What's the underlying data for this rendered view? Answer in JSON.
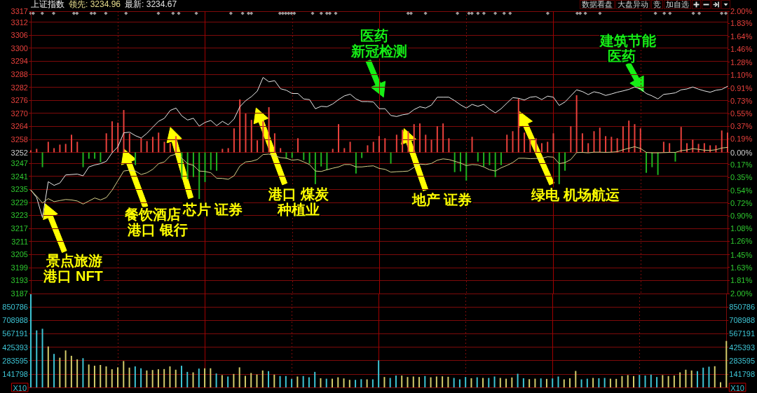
{
  "chart_data": [
    {
      "type": "line",
      "title": "上证指数",
      "annotations": [
        "领先: 3234.96",
        "最新: 3234.67",
        "数据看盘",
        "大盘异动",
        "竞",
        "加自选",
        "景点旅游",
        "港口 NFT",
        "餐饮酒店",
        "港口 银行",
        "芯片 证券",
        "港口 煤炭",
        "种植业",
        "医药",
        "新冠检测",
        "地产 证券",
        "绿电 机场航运",
        "建筑节能",
        "医药"
      ],
      "categories": [
        null,
        null,
        null,
        null,
        null,
        null,
        null,
        null,
        null,
        null,
        null,
        null,
        null,
        null,
        null,
        null,
        null,
        null,
        null,
        null,
        null,
        null,
        null,
        null,
        null,
        null,
        null,
        null,
        null,
        null,
        null,
        null,
        null,
        null,
        null,
        null,
        null,
        null,
        null,
        null,
        null,
        null,
        null,
        null,
        null,
        null,
        null,
        null,
        null,
        null,
        null,
        null,
        null,
        null,
        null,
        null,
        null,
        null,
        null,
        null,
        null,
        null,
        null,
        null,
        null,
        null,
        null,
        null,
        null,
        null,
        null,
        null,
        null,
        null,
        null,
        null,
        null,
        null,
        null,
        null,
        null,
        null,
        null,
        null,
        null,
        null,
        null,
        null,
        null,
        null,
        null,
        null,
        null,
        null,
        null,
        null,
        null,
        null,
        null,
        null,
        null,
        null,
        null,
        null,
        null,
        null,
        null,
        null,
        null,
        null,
        null,
        null,
        null,
        null,
        null,
        null,
        null,
        null,
        null,
        null,
        null
      ],
      "ylim": [
        3187,
        3317
      ],
      "yticks": [
        3187,
        3193,
        3199,
        3205,
        3211,
        3217,
        3223,
        3229,
        3235,
        3241,
        3247,
        3252,
        3258,
        3264,
        3270,
        3276,
        3282,
        3288,
        3294,
        3300,
        3306,
        3312,
        3317
      ],
      "y2lim": [
        -2,
        2
      ],
      "y2ticks": [
        {
          "value": -2,
          "label": "2.00%"
        },
        {
          "value": -1.81,
          "label": "1.81%"
        },
        {
          "value": -1.63,
          "label": "1.63%"
        },
        {
          "value": -1.45,
          "label": "1.45%"
        },
        {
          "value": -1.26,
          "label": "1.26%"
        },
        {
          "value": -1.08,
          "label": "1.08%"
        },
        {
          "value": -0.9,
          "label": "0.90%"
        },
        {
          "value": -0.72,
          "label": "0.72%"
        },
        {
          "value": -0.54,
          "label": "0.54%"
        },
        {
          "value": -0.35,
          "label": "0.35%"
        },
        {
          "value": -0.17,
          "label": "0.17%"
        },
        {
          "value": 0,
          "label": "0.00%"
        },
        {
          "value": 0.19,
          "label": "0.19%"
        },
        {
          "value": 0.37,
          "label": "0.37%"
        },
        {
          "value": 0.55,
          "label": "0.55%"
        },
        {
          "value": 0.73,
          "label": "0.73%"
        },
        {
          "value": 0.91,
          "label": "0.91%"
        },
        {
          "value": 1.1,
          "label": "1.10%"
        },
        {
          "value": 1.28,
          "label": "1.28%"
        },
        {
          "value": 1.46,
          "label": "1.46%"
        },
        {
          "value": 1.64,
          "label": "1.64%"
        },
        {
          "value": 1.83,
          "label": "1.83%"
        },
        {
          "value": 2,
          "label": "2.00%"
        }
      ],
      "series": [
        {
          "color": "#e8e8e8",
          "values": [
            3234.6,
            3231.2,
            3222,
            3238.5,
            3236.8,
            3237.9,
            3241.6,
            3241.8,
            3242,
            3241.2,
            3245.3,
            3246.2,
            3246.8,
            3247.9,
            3251.8,
            3254.6,
            3261,
            3261.3,
            3259.7,
            3258.6,
            3260.8,
            3263.6,
            3266.3,
            3267.7,
            3271.3,
            3272.4,
            3268.8,
            3266.9,
            3267.7,
            3264.1,
            3265.8,
            3266.7,
            3264.3,
            3266.3,
            3264.7,
            3267.4,
            3273,
            3275.8,
            3277.7,
            3280.2,
            3286.5,
            3284.5,
            3285,
            3281.3,
            3280.6,
            3279.1,
            3279.1,
            3276.6,
            3276.3,
            3272.1,
            3273.2,
            3273,
            3274.3,
            3276.3,
            3278,
            3278.8,
            3276.6,
            3275.4,
            3275.4,
            3275.2,
            3272.1,
            3272.1,
            3269,
            3268.5,
            3269.3,
            3269.7,
            3271.7,
            3273,
            3272.4,
            3273.8,
            3277.4,
            3277.4,
            3277.4,
            3275.8,
            3273.9,
            3272.4,
            3274.1,
            3273.2,
            3274.1,
            3271.9,
            3270.2,
            3272.1,
            3274.7,
            3277.2,
            3276.9,
            3276.1,
            3277.4,
            3277.7,
            3276.3,
            3277.9,
            3277.4,
            3273.6,
            3275.2,
            3278,
            3280.8,
            3280,
            3278.6,
            3279.9,
            3279.3,
            3278.2,
            3278.9,
            3279.7,
            3280.3,
            3281,
            3282.1,
            3281.3,
            3279.1,
            3278,
            3276.6,
            3278.7,
            3279,
            3279.4,
            3280.8,
            3281.2,
            3282.1,
            3281.1,
            3280.3,
            3279.7,
            3280.6,
            3281,
            3282.4
          ]
        },
        {
          "color": "#d6d08a",
          "values": [
            3234.6,
            3231.8,
            3228.7,
            3230.7,
            3229.3,
            3229.8,
            3230.3,
            3230.1,
            3229.6,
            3228.2,
            3229.6,
            3231,
            3230.1,
            3231.2,
            3234.6,
            3239,
            3243.4,
            3243.8,
            3243.4,
            3241.8,
            3242.6,
            3244.2,
            3246.8,
            3247.6,
            3250.4,
            3251.2,
            3249.3,
            3246.8,
            3246,
            3243.4,
            3243.2,
            3242.6,
            3240.1,
            3240,
            3239.6,
            3241.2,
            3245.7,
            3247.6,
            3247.9,
            3248.7,
            3251,
            3251.2,
            3250.4,
            3249.6,
            3249.3,
            3248.4,
            3248.7,
            3247.6,
            3246.4,
            3243.4,
            3243.2,
            3244,
            3244.7,
            3245.3,
            3246.4,
            3246.4,
            3245.3,
            3245.3,
            3245.6,
            3245.8,
            3244.6,
            3244.2,
            3242.9,
            3243.1,
            3243.2,
            3243.4,
            3245.1,
            3246.6,
            3246.4,
            3246.9,
            3248.4,
            3249,
            3248.7,
            3247.9,
            3247.1,
            3245.9,
            3246.4,
            3246.2,
            3245.3,
            3244,
            3243.4,
            3244.9,
            3246,
            3247.3,
            3249.3,
            3249.3,
            3249.1,
            3249.2,
            3249.3,
            3250,
            3249.8,
            3246.8,
            3247.3,
            3248.7,
            3251.9,
            3252,
            3251.8,
            3252.1,
            3252.1,
            3252,
            3252.1,
            3252.3,
            3253.2,
            3253.9,
            3254.6,
            3253.8,
            3252,
            3251.8,
            3251.8,
            3251.9,
            3252,
            3252,
            3252.8,
            3253.1,
            3253.7,
            3253.4,
            3253,
            3252.9,
            3253.2,
            3254,
            3254.3
          ]
        },
        {
          "type": "bar",
          "axis": "y2",
          "color": "#e8413c",
          "values": [
            0.03,
            0.05,
            null,
            0.15,
            0.06,
            0.11,
            0.12,
            0.25,
            0.15,
            null,
            null,
            null,
            null,
            0.27,
            0.44,
            0.42,
            0.6,
            0.27,
            null,
            0.2,
            0.16,
            0.22,
            0.28,
            0.15,
            0.13,
            0.23,
            null,
            null,
            null,
            null,
            null,
            null,
            null,
            0.05,
            0.06,
            0.34,
            0.75,
            0.55,
            0.46,
            0.17,
            0.44,
            0.64,
            0.27,
            0.06,
            null,
            null,
            0.2,
            null,
            null,
            null,
            null,
            null,
            0.05,
            0.4,
            0.06,
            0.15,
            null,
            null,
            0.1,
            0.15,
            0.23,
            0.2,
            null,
            0.25,
            0.32,
            0.3,
            0.4,
            0.41,
            0.25,
            0.18,
            0.37,
            0.41,
            0.2,
            null,
            null,
            null,
            0.22,
            null,
            null,
            null,
            null,
            null,
            0.25,
            0.3,
            0.76,
            0.28,
            0.18,
            0.2,
            0.13,
            0.15,
            0.27,
            null,
            null,
            0.37,
            0.81,
            0.27,
            0.13,
            0.3,
            0.35,
            0.23,
            0.22,
            0.2,
            0.37,
            0.45,
            0.4,
            0.34,
            null,
            null,
            null,
            0.15,
            0.13,
            null,
            0.36,
            0.13,
            0.18,
            0.12,
            0.13,
            0.1,
            0.1,
            0.31,
            0.28
          ]
        },
        {
          "type": "bar",
          "axis": "y2",
          "color": "#1fb51f",
          "values": [
            null,
            null,
            -0.21,
            null,
            null,
            null,
            null,
            null,
            null,
            -0.21,
            -0.09,
            -0.09,
            -0.14,
            null,
            null,
            null,
            null,
            null,
            -0.18,
            null,
            null,
            null,
            null,
            null,
            null,
            null,
            -0.37,
            -0.38,
            -0.35,
            -0.66,
            -0.42,
            -0.25,
            -0.26,
            null,
            null,
            null,
            null,
            null,
            null,
            null,
            null,
            null,
            null,
            null,
            -0.09,
            -0.08,
            null,
            -0.11,
            -0.16,
            -0.45,
            -0.2,
            -0.25,
            null,
            null,
            null,
            null,
            -0.3,
            -0.08,
            null,
            null,
            null,
            null,
            -0.16,
            null,
            null,
            null,
            null,
            null,
            null,
            null,
            null,
            null,
            null,
            -0.28,
            -0.27,
            -0.4,
            null,
            -0.13,
            -0.2,
            -0.18,
            -0.35,
            -0.18,
            null,
            null,
            null,
            null,
            null,
            null,
            null,
            null,
            null,
            -0.45,
            -0.26,
            null,
            null,
            null,
            null,
            null,
            null,
            null,
            null,
            null,
            null,
            null,
            null,
            null,
            -0.29,
            -0.21,
            -0.32,
            null,
            null,
            -0.13,
            null,
            null,
            null,
            null,
            null,
            null,
            null,
            null,
            null
          ]
        }
      ],
      "grid": true,
      "tick_labels": "y",
      "marker": "none"
    },
    {
      "type": "bar",
      "categories": [
        null,
        null,
        null,
        null,
        null,
        null,
        null,
        null,
        null,
        null,
        null,
        null,
        null,
        null,
        null,
        null,
        null,
        null,
        null,
        null,
        null,
        null,
        null,
        null,
        null,
        null,
        null,
        null,
        null,
        null,
        null,
        null,
        null,
        null,
        null,
        null,
        null,
        null,
        null,
        null,
        null,
        null,
        null,
        null,
        null,
        null,
        null,
        null,
        null,
        null,
        null,
        null,
        null,
        null,
        null,
        null,
        null,
        null,
        null,
        null,
        null,
        null,
        null,
        null,
        null,
        null,
        null,
        null,
        null,
        null,
        null,
        null,
        null,
        null,
        null,
        null,
        null,
        null,
        null,
        null,
        null,
        null,
        null,
        null,
        null,
        null,
        null,
        null,
        null,
        null,
        null,
        null,
        null,
        null,
        null,
        null,
        null,
        null,
        null,
        null,
        null,
        null,
        null,
        null,
        null,
        null,
        null,
        null,
        null,
        null,
        null,
        null,
        null,
        null,
        null,
        null,
        null,
        null,
        null,
        null,
        null
      ],
      "values": [
        985000,
        603000,
        620000,
        433000,
        354000,
        314000,
        391000,
        334000,
        296000,
        309000,
        242000,
        229000,
        237000,
        222000,
        192000,
        212000,
        279000,
        209000,
        222000,
        202000,
        179000,
        184000,
        192000,
        194000,
        222000,
        187000,
        229000,
        164000,
        159000,
        199000,
        202000,
        202000,
        147000,
        130000,
        115000,
        142000,
        212000,
        122000,
        152000,
        137000,
        179000,
        172000,
        135000,
        120000,
        120000,
        90000,
        115000,
        120000,
        107000,
        164000,
        97000,
        92000,
        92000,
        107000,
        95000,
        80000,
        80000,
        87000,
        85000,
        85000,
        286000,
        110000,
        100000,
        125000,
        125000,
        110000,
        115000,
        110000,
        120000,
        107000,
        115000,
        117000,
        112000,
        100000,
        85000,
        110000,
        97000,
        107000,
        100000,
        100000,
        115000,
        100000,
        92000,
        105000,
        144000,
        97000,
        87000,
        92000,
        95000,
        90000,
        95000,
        115000,
        85000,
        97000,
        174000,
        85000,
        92000,
        100000,
        97000,
        100000,
        92000,
        90000,
        120000,
        130000,
        120000,
        132000,
        125000,
        135000,
        110000,
        130000,
        120000,
        125000,
        159000,
        187000,
        179000,
        172000,
        209000,
        219000,
        224000,
        55000,
        491000
      ],
      "colors": [
        "#3ec4d4",
        "#3ec4d4",
        "#3ec4d4",
        "#d4cc6a",
        "#3ec4d4",
        "#d4cc6a",
        "#d4cc6a",
        "#d4cc6a",
        "#d4cc6a",
        "#3ec4d4",
        "#d4cc6a",
        "#d4cc6a",
        "#d4cc6a",
        "#d4cc6a",
        "#d4cc6a",
        "#d4cc6a",
        "#d4cc6a",
        "#d4cc6a",
        "#3ec4d4",
        "#3ec4d4",
        "#d4cc6a",
        "#d4cc6a",
        "#d4cc6a",
        "#d4cc6a",
        "#d4cc6a",
        "#d4cc6a",
        "#3ec4d4",
        "#3ec4d4",
        "#d4cc6a",
        "#3ec4d4",
        "#d4cc6a",
        "#d4cc6a",
        "#3ec4d4",
        "#d4cc6a",
        "#3ec4d4",
        "#d4cc6a",
        "#d4cc6a",
        "#d4cc6a",
        "#d4cc6a",
        "#d4cc6a",
        "#d4cc6a",
        "#3ec4d4",
        "#d4cc6a",
        "#3ec4d4",
        "#3ec4d4",
        "#3ec4d4",
        "#d4cc6a",
        "#3ec4d4",
        "#3ec4d4",
        "#3ec4d4",
        "#d4cc6a",
        "#3ec4d4",
        "#d4cc6a",
        "#d4cc6a",
        "#d4cc6a",
        "#d4cc6a",
        "#3ec4d4",
        "#3ec4d4",
        "#d4cc6a",
        "#3ec4d4",
        "#3ec4d4",
        "#d4cc6a",
        "#3ec4d4",
        "#3ec4d4",
        "#d4cc6a",
        "#d4cc6a",
        "#d4cc6a",
        "#d4cc6a",
        "#3ec4d4",
        "#d4cc6a",
        "#d4cc6a",
        "#d4cc6a",
        "#d4cc6a",
        "#3ec4d4",
        "#3ec4d4",
        "#3ec4d4",
        "#d4cc6a",
        "#3ec4d4",
        "#d4cc6a",
        "#3ec4d4",
        "#3ec4d4",
        "#d4cc6a",
        "#d4cc6a",
        "#d4cc6a",
        "#3ec4d4",
        "#3ec4d4",
        "#d4cc6a",
        "#d4cc6a",
        "#3ec4d4",
        "#d4cc6a",
        "#3ec4d4",
        "#3ec4d4",
        "#d4cc6a",
        "#d4cc6a",
        "#d4cc6a",
        "#3ec4d4",
        "#3ec4d4",
        "#d4cc6a",
        "#3ec4d4",
        "#3ec4d4",
        "#d4cc6a",
        "#d4cc6a",
        "#d4cc6a",
        "#d4cc6a",
        "#d4cc6a",
        "#3ec4d4",
        "#3ec4d4",
        "#3ec4d4",
        "#3ec4d4",
        "#d4cc6a",
        "#d4cc6a",
        "#d4cc6a",
        "#d4cc6a",
        "#d4cc6a",
        "#d4cc6a",
        "#3ec4d4",
        "#3ec4d4",
        "#3ec4d4",
        "#d4cc6a",
        "#d4cc6a",
        "#d4cc6a"
      ],
      "ylim": [
        0,
        992584
      ],
      "yticks": [
        {
          "value": 0,
          "label": "X10"
        },
        141798,
        283595,
        425393,
        567191,
        708988,
        850786
      ],
      "y2lim": [
        0,
        992584
      ],
      "y2ticks": [
        {
          "value": 0,
          "label": "X10"
        },
        141798,
        283595,
        425393,
        567191,
        708988,
        850786
      ],
      "grid": true,
      "tick_labels": "y"
    }
  ]
}
